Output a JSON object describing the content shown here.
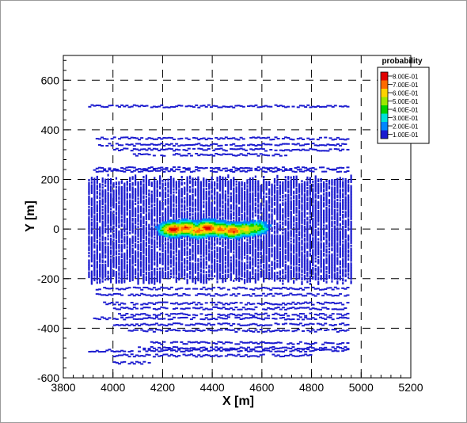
{
  "chart_data": {
    "type": "scatter",
    "title": "",
    "xlabel": "X [m]",
    "ylabel": "Y [m]",
    "xlim": [
      3800,
      5200
    ],
    "ylim": [
      -600,
      700
    ],
    "x_ticks": [
      3800,
      4000,
      4200,
      4400,
      4600,
      4800,
      5000,
      5200
    ],
    "y_ticks": [
      -600,
      -400,
      -200,
      0,
      200,
      400,
      600
    ],
    "grid": "dashed",
    "legend": {
      "title": "probability",
      "placement": "top-right",
      "levels": [
        "8.00E-01",
        "7.00E-01",
        "6.00E-01",
        "5.00E-01",
        "4.00E-01",
        "3.00E-01",
        "2.00E-01",
        "1.00E-01"
      ],
      "colors": [
        "#e00000",
        "#ff6a00",
        "#ffd200",
        "#9be800",
        "#00d200",
        "#00e0d8",
        "#0086ff",
        "#1a1ad0"
      ]
    },
    "bands": [
      {
        "y": 495,
        "x0": 3900,
        "x1": 4950
      },
      {
        "y": 365,
        "x0": 3930,
        "x1": 4950
      },
      {
        "y": 340,
        "x0": 3940,
        "x1": 4950
      },
      {
        "y": 320,
        "x0": 4000,
        "x1": 4950
      },
      {
        "y": 300,
        "x0": 4080,
        "x1": 4700
      },
      {
        "y": 245,
        "x0": 3920,
        "x1": 4950
      },
      {
        "y": 235,
        "x0": 3920,
        "x1": 4950
      },
      {
        "y": -240,
        "x0": 3920,
        "x1": 4950
      },
      {
        "y": -265,
        "x0": 3930,
        "x1": 4950
      },
      {
        "y": -300,
        "x0": 3960,
        "x1": 4950
      },
      {
        "y": -320,
        "x0": 4000,
        "x1": 4950
      },
      {
        "y": -345,
        "x0": 4020,
        "x1": 4950
      },
      {
        "y": -360,
        "x0": 3920,
        "x1": 4950
      },
      {
        "y": -385,
        "x0": 4000,
        "x1": 4950
      },
      {
        "y": -410,
        "x0": 4060,
        "x1": 4950
      },
      {
        "y": -460,
        "x0": 4150,
        "x1": 4950
      },
      {
        "y": -480,
        "x0": 4100,
        "x1": 4950
      },
      {
        "y": -490,
        "x0": 3900,
        "x1": 4950
      },
      {
        "y": -510,
        "x0": 4000,
        "x1": 4800
      },
      {
        "y": -540,
        "x0": 4000,
        "x1": 4150
      }
    ],
    "dense_region": {
      "x0": 3900,
      "x1": 4960,
      "y0": -220,
      "y1": 220
    },
    "hotspots": [
      {
        "x": 4240,
        "y": 0,
        "p": 0.8
      },
      {
        "x": 4290,
        "y": 5,
        "p": 0.75
      },
      {
        "x": 4340,
        "y": -5,
        "p": 0.7
      },
      {
        "x": 4380,
        "y": 5,
        "p": 0.8
      },
      {
        "x": 4430,
        "y": 0,
        "p": 0.7
      },
      {
        "x": 4480,
        "y": -5,
        "p": 0.75
      },
      {
        "x": 4530,
        "y": 0,
        "p": 0.6
      },
      {
        "x": 4570,
        "y": 5,
        "p": 0.5
      }
    ]
  }
}
